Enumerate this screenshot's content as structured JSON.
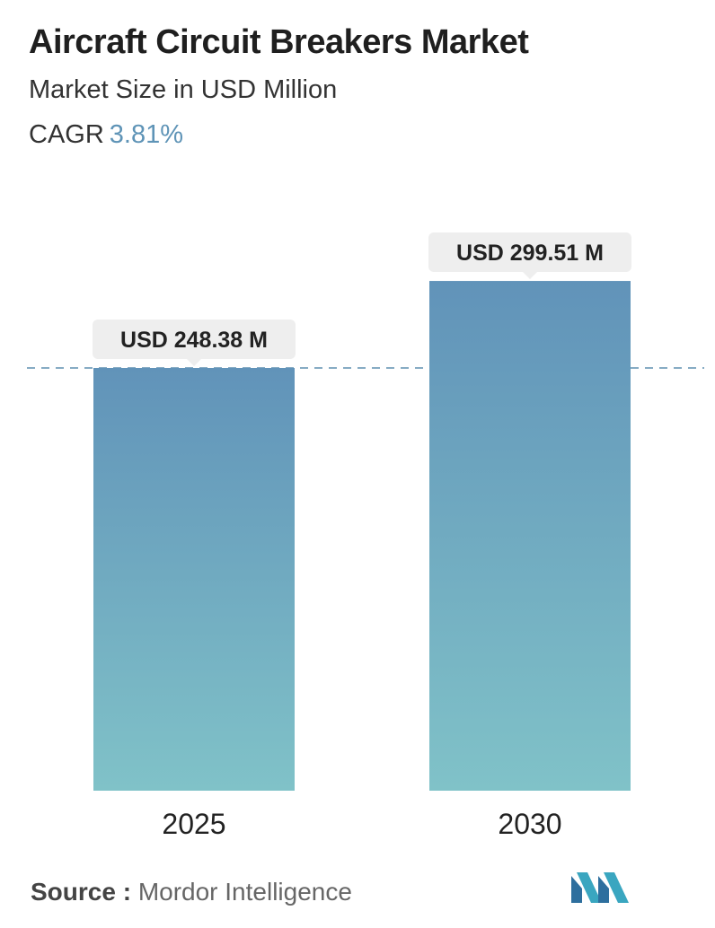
{
  "header": {
    "title": "Aircraft Circuit Breakers Market",
    "subtitle": "Market Size in USD Million",
    "cagr_label": "CAGR",
    "cagr_value": "3.81%"
  },
  "chart_data": {
    "type": "bar",
    "categories": [
      "2025",
      "2030"
    ],
    "values": [
      248.38,
      299.51
    ],
    "value_labels": [
      "USD 248.38 M",
      "USD 299.51 M"
    ],
    "title": "Aircraft Circuit Breakers Market",
    "subtitle": "Market Size in USD Million",
    "reference_line": 248.38,
    "colors": {
      "bar_top": "#6193b9",
      "bar_bottom": "#80c2c8",
      "reference_line": "#5f8fb0",
      "label_box": "#eeeeee"
    },
    "grid": false
  },
  "footer": {
    "source_label": "Source :",
    "source_value": "Mordor Intelligence"
  }
}
